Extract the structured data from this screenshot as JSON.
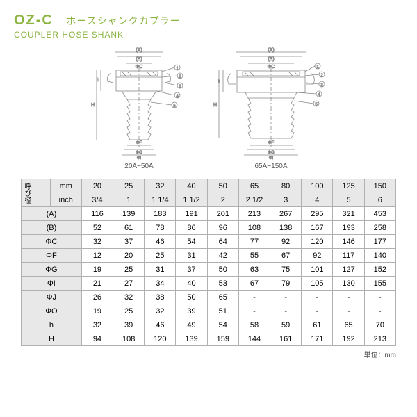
{
  "header": {
    "code": "OZ-C",
    "jp": "ホースシャンクカプラー",
    "en": "COUPLER HOSE SHANK",
    "color": "#8bb440"
  },
  "diagrams": {
    "left_label": "20A~50A",
    "right_label": "65A~150A",
    "callouts": [
      "1",
      "2",
      "3",
      "4",
      "5"
    ],
    "dims_left": [
      "(A)",
      "(B)",
      "ΦC",
      "h",
      "H",
      "ΦF",
      "ΦG",
      "ΦI",
      "ΦJ",
      "ΦO"
    ],
    "dims_right": [
      "(A)",
      "(B)",
      "ΦC",
      "h",
      "H",
      "ΦF",
      "ΦG",
      "ΦI"
    ],
    "line_color": "#888888",
    "stroke_width": 0.8
  },
  "table": {
    "vhead": "呼び径",
    "unit_note": "単位：mm",
    "columns_mm": [
      "20",
      "25",
      "32",
      "40",
      "50",
      "65",
      "80",
      "100",
      "125",
      "150"
    ],
    "columns_inch": [
      "3/4",
      "1",
      "1 1/4",
      "1 1/2",
      "2",
      "2 1/2",
      "3",
      "4",
      "5",
      "6"
    ],
    "rows": [
      {
        "label": "(A)",
        "vals": [
          "116",
          "139",
          "183",
          "191",
          "201",
          "213",
          "267",
          "295",
          "321",
          "453"
        ]
      },
      {
        "label": "(B)",
        "vals": [
          "52",
          "61",
          "78",
          "86",
          "96",
          "108",
          "138",
          "167",
          "193",
          "258"
        ]
      },
      {
        "label": "ΦC",
        "vals": [
          "32",
          "37",
          "46",
          "54",
          "64",
          "77",
          "92",
          "120",
          "146",
          "177"
        ]
      },
      {
        "label": "ΦF",
        "vals": [
          "12",
          "20",
          "25",
          "31",
          "42",
          "55",
          "67",
          "92",
          "117",
          "140"
        ]
      },
      {
        "label": "ΦG",
        "vals": [
          "19",
          "25",
          "31",
          "37",
          "50",
          "63",
          "75",
          "101",
          "127",
          "152"
        ]
      },
      {
        "label": "ΦI",
        "vals": [
          "21",
          "27",
          "34",
          "40",
          "53",
          "67",
          "79",
          "105",
          "130",
          "155"
        ]
      },
      {
        "label": "ΦJ",
        "vals": [
          "26",
          "32",
          "38",
          "50",
          "65",
          "-",
          "-",
          "-",
          "-",
          "-"
        ]
      },
      {
        "label": "ΦO",
        "vals": [
          "19",
          "25",
          "32",
          "39",
          "51",
          "-",
          "-",
          "-",
          "-",
          "-"
        ]
      },
      {
        "label": "h",
        "vals": [
          "32",
          "39",
          "46",
          "49",
          "54",
          "58",
          "59",
          "61",
          "65",
          "70"
        ]
      },
      {
        "label": "H",
        "vals": [
          "94",
          "108",
          "120",
          "139",
          "159",
          "144",
          "161",
          "171",
          "192",
          "213"
        ]
      }
    ],
    "header_bg": "#e8e8e8",
    "border_color": "#b0b0b0",
    "font_size": 11
  }
}
